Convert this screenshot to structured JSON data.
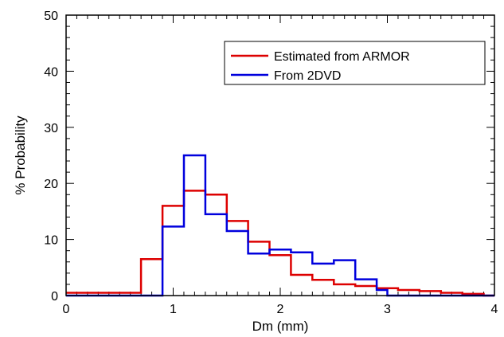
{
  "chart_data": {
    "type": "line",
    "step": true,
    "xlabel": "Dm (mm)",
    "ylabel": "% Probability",
    "xlim": [
      0,
      4
    ],
    "ylim": [
      0,
      50
    ],
    "x_ticks": [
      0,
      1,
      2,
      3,
      4
    ],
    "y_ticks": [
      0,
      10,
      20,
      30,
      40,
      50
    ],
    "x_tick_labels": [
      "0",
      "1",
      "2",
      "3",
      "4"
    ],
    "y_tick_labels": [
      "0",
      "10",
      "20",
      "30",
      "40",
      "50"
    ],
    "grid": false,
    "legend_position": "top-right",
    "bin_edges": [
      0.0,
      0.1,
      0.2,
      0.3,
      0.4,
      0.5,
      0.6,
      0.7,
      0.8,
      0.9,
      1.0,
      1.1,
      1.2,
      1.3,
      1.4,
      1.5,
      1.6,
      1.7,
      1.8,
      1.9,
      2.0,
      2.1,
      2.2,
      2.3,
      2.4,
      2.5,
      2.6,
      2.7,
      2.8,
      2.9,
      3.0,
      3.1,
      3.2,
      3.3,
      3.4,
      3.5,
      3.6,
      3.7,
      3.8,
      3.9,
      4.0
    ],
    "series": [
      {
        "name": "Estimated from ARMOR",
        "color": "#dd0000",
        "values": [
          0.5,
          0.5,
          0.5,
          0.5,
          0.5,
          0.5,
          0.5,
          6.5,
          6.5,
          16.0,
          16.0,
          18.7,
          18.7,
          18.0,
          18.0,
          13.3,
          13.3,
          9.6,
          9.6,
          7.2,
          7.2,
          3.7,
          3.7,
          2.8,
          2.8,
          2.0,
          2.0,
          1.7,
          1.7,
          1.3,
          1.3,
          1.0,
          1.0,
          0.8,
          0.8,
          0.5,
          0.5,
          0.3,
          0.3,
          0.0
        ]
      },
      {
        "name": "From 2DVD",
        "color": "#0000dd",
        "values": [
          0.0,
          0.0,
          0.0,
          0.0,
          0.0,
          0.0,
          0.0,
          0.0,
          0.0,
          12.3,
          12.3,
          25.0,
          25.0,
          14.5,
          14.5,
          11.5,
          11.5,
          7.5,
          7.5,
          8.2,
          8.2,
          7.7,
          7.7,
          5.7,
          5.7,
          6.3,
          6.3,
          2.9,
          2.9,
          1.0,
          0.0,
          0.0,
          0.0,
          0.0,
          0.0,
          0.0,
          0.0,
          0.0,
          0.0,
          0.0
        ]
      }
    ]
  }
}
